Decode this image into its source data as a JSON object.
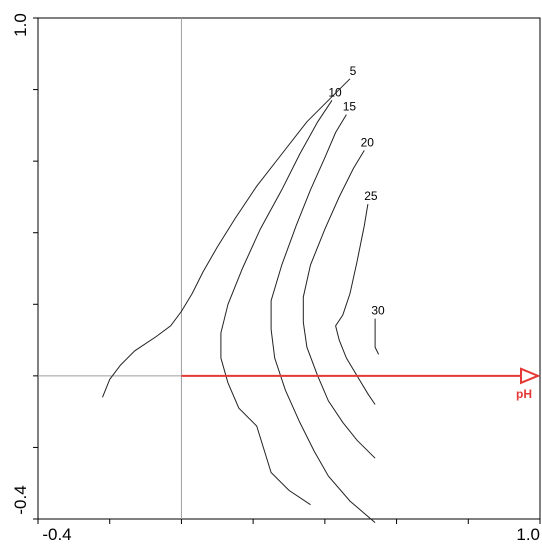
{
  "chart_data": {
    "type": "line",
    "title": "",
    "xlabel": "",
    "ylabel": "",
    "xlim": [
      -0.4,
      1.0
    ],
    "ylim": [
      -0.4,
      1.0
    ],
    "x_tick_labels": [
      "-0.4",
      "1.0"
    ],
    "y_tick_labels": [
      "1.0",
      "-0.4"
    ],
    "grid": false,
    "reference_lines": {
      "x": 0,
      "y": 0
    },
    "colors": {
      "contours": "#222222",
      "arrow": "#e53935",
      "axes": "#000000",
      "reference": "#9e9e9e"
    },
    "arrow": {
      "label": "pH",
      "from": [
        0,
        0
      ],
      "to": [
        1.0,
        0
      ]
    },
    "series": [
      {
        "name": "5",
        "points": [
          [
            -0.22,
            -0.06
          ],
          [
            -0.2,
            -0.01
          ],
          [
            -0.17,
            0.03
          ],
          [
            -0.13,
            0.07
          ],
          [
            -0.07,
            0.11
          ],
          [
            -0.03,
            0.14
          ],
          [
            0.0,
            0.18
          ],
          [
            0.03,
            0.23
          ],
          [
            0.06,
            0.29
          ],
          [
            0.1,
            0.36
          ],
          [
            0.15,
            0.44
          ],
          [
            0.21,
            0.53
          ],
          [
            0.28,
            0.62
          ],
          [
            0.35,
            0.71
          ],
          [
            0.42,
            0.78
          ],
          [
            0.47,
            0.83
          ]
        ]
      },
      {
        "name": "10",
        "points": [
          [
            0.36,
            -0.36
          ],
          [
            0.3,
            -0.32
          ],
          [
            0.25,
            -0.27
          ],
          [
            0.21,
            -0.14
          ],
          [
            0.16,
            -0.09
          ],
          [
            0.13,
            -0.02
          ],
          [
            0.11,
            0.05
          ],
          [
            0.11,
            0.12
          ],
          [
            0.13,
            0.2
          ],
          [
            0.17,
            0.3
          ],
          [
            0.22,
            0.41
          ],
          [
            0.28,
            0.52
          ],
          [
            0.33,
            0.62
          ],
          [
            0.38,
            0.71
          ],
          [
            0.42,
            0.77
          ]
        ]
      },
      {
        "name": "15",
        "points": [
          [
            0.54,
            -0.41
          ],
          [
            0.47,
            -0.35
          ],
          [
            0.41,
            -0.28
          ],
          [
            0.37,
            -0.21
          ],
          [
            0.33,
            -0.13
          ],
          [
            0.29,
            -0.04
          ],
          [
            0.26,
            0.05
          ],
          [
            0.25,
            0.13
          ],
          [
            0.25,
            0.21
          ],
          [
            0.28,
            0.31
          ],
          [
            0.32,
            0.42
          ],
          [
            0.36,
            0.52
          ],
          [
            0.4,
            0.61
          ],
          [
            0.43,
            0.68
          ],
          [
            0.46,
            0.73
          ]
        ]
      },
      {
        "name": "20",
        "points": [
          [
            0.54,
            -0.23
          ],
          [
            0.49,
            -0.18
          ],
          [
            0.45,
            -0.13
          ],
          [
            0.41,
            -0.07
          ],
          [
            0.38,
            0.0
          ],
          [
            0.35,
            0.08
          ],
          [
            0.34,
            0.15
          ],
          [
            0.34,
            0.22
          ],
          [
            0.36,
            0.31
          ],
          [
            0.4,
            0.41
          ],
          [
            0.44,
            0.5
          ],
          [
            0.48,
            0.58
          ],
          [
            0.51,
            0.63
          ]
        ]
      },
      {
        "name": "25",
        "points": [
          [
            0.54,
            -0.08
          ],
          [
            0.52,
            -0.05
          ],
          [
            0.49,
            0.0
          ],
          [
            0.46,
            0.05
          ],
          [
            0.44,
            0.1
          ],
          [
            0.43,
            0.14
          ],
          [
            0.45,
            0.17
          ],
          [
            0.47,
            0.23
          ],
          [
            0.49,
            0.32
          ],
          [
            0.51,
            0.42
          ],
          [
            0.52,
            0.48
          ]
        ]
      },
      {
        "name": "30",
        "points": [
          [
            0.55,
            0.06
          ],
          [
            0.54,
            0.08
          ],
          [
            0.54,
            0.12
          ],
          [
            0.54,
            0.16
          ]
        ]
      }
    ]
  }
}
